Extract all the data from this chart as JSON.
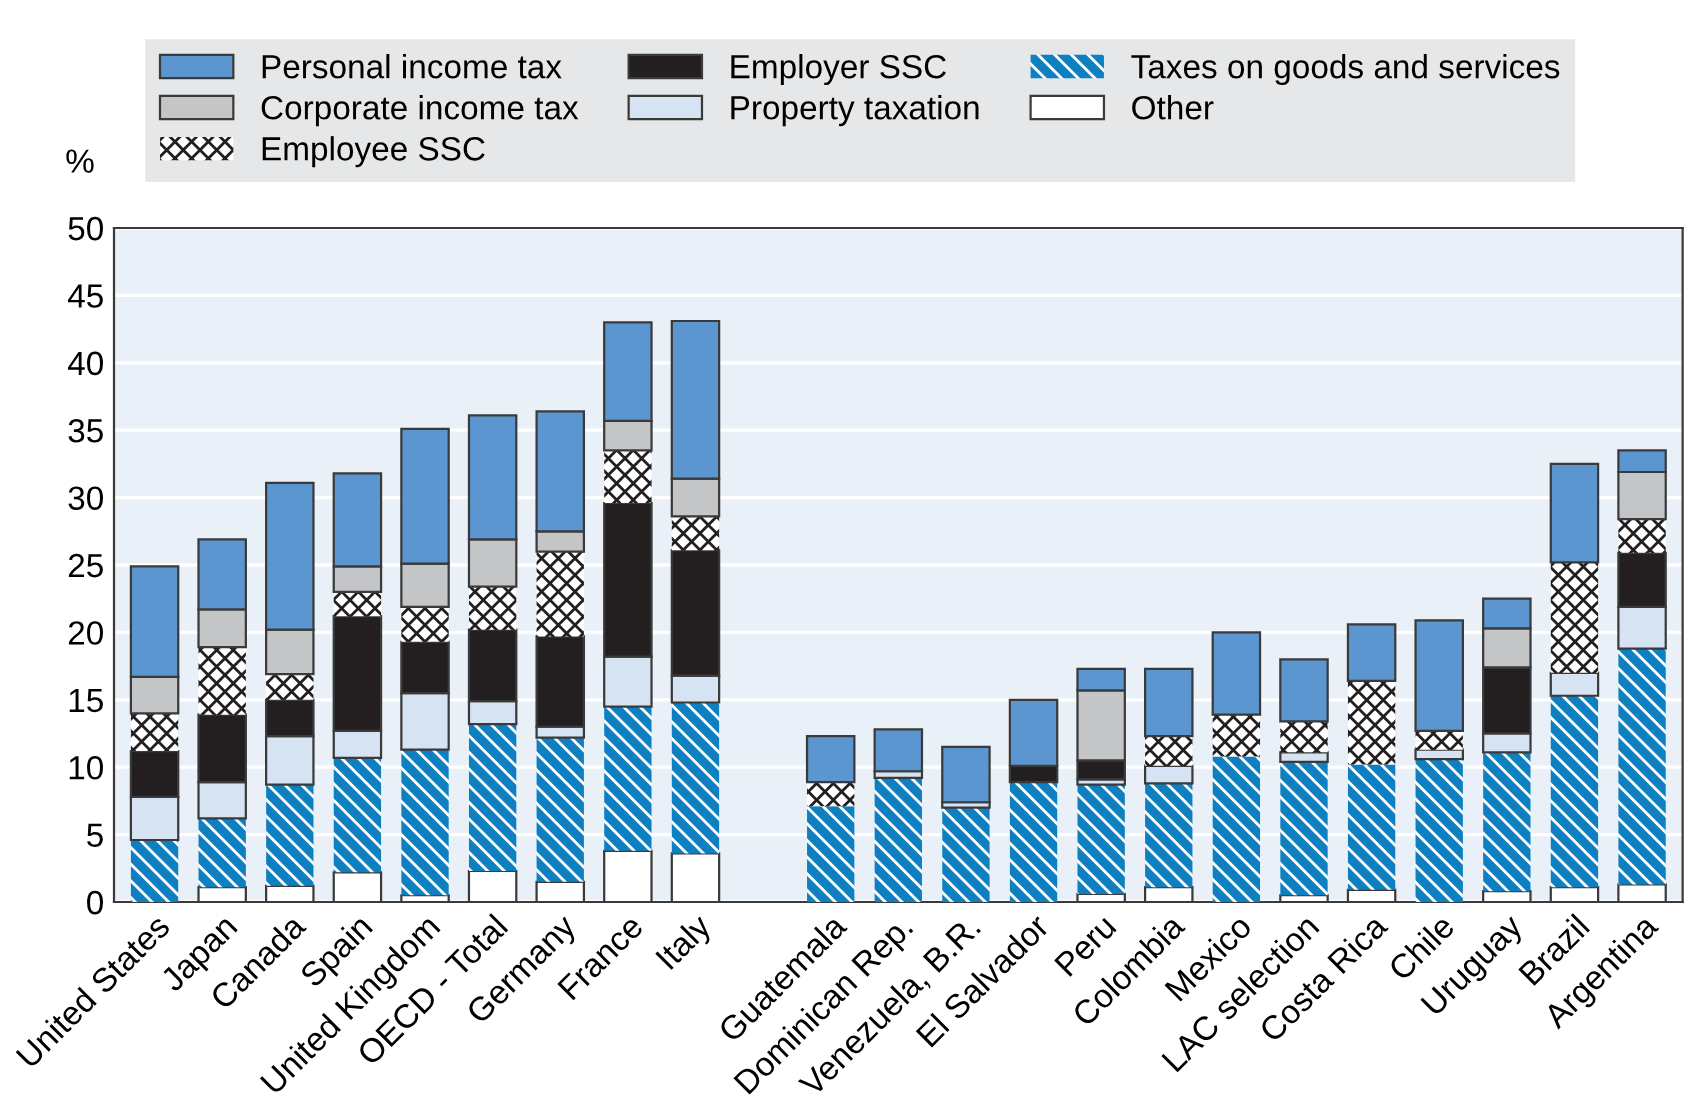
{
  "chart_data": {
    "type": "bar",
    "stacked": true,
    "ylabel": "%",
    "categories": [
      "United States",
      "Japan",
      "Canada",
      "Spain",
      "United Kingdom",
      "OECD - Total",
      "Germany",
      "France",
      "Italy",
      null,
      "Guatemala",
      "Dominican Rep.",
      "Venezuela, B.R.",
      "El Salvador",
      "Peru",
      "Colombia",
      "Mexico",
      "LAC selection",
      "Costa Rica",
      "Chile",
      "Uruguay",
      "Brazil",
      "Argentina"
    ],
    "series": [
      {
        "name": "Other",
        "color": "#ffffff",
        "values": [
          null,
          1.1,
          1.2,
          2.2,
          0.5,
          2.3,
          1.5,
          3.8,
          3.6,
          null,
          null,
          0,
          0,
          0,
          0.6,
          1.1,
          null,
          0.5,
          0.9,
          0,
          0.8,
          1.1,
          1.3
        ]
      },
      {
        "name": "Taxes on goods and services",
        "color": "#0e7fc0",
        "values": [
          4.6,
          5.1,
          7.5,
          8.5,
          10.8,
          10.9,
          10.7,
          10.7,
          11.2,
          null,
          7.1,
          9.2,
          7.0,
          8.9,
          8.1,
          7.7,
          10.8,
          9.9,
          9.3,
          10.6,
          10.3,
          14.2,
          17.5
        ]
      },
      {
        "name": "Property taxation",
        "color": "#d6e3f3",
        "values": [
          3.2,
          2.7,
          3.6,
          2.0,
          4.2,
          1.7,
          0.8,
          3.7,
          2.0,
          null,
          0,
          0.5,
          0.4,
          0,
          0.4,
          1.3,
          0,
          0.7,
          0,
          0.7,
          1.4,
          1.7,
          3.1
        ]
      },
      {
        "name": "Employer SSC",
        "color": "#231f20",
        "values": [
          3.4,
          5.0,
          2.7,
          8.5,
          3.8,
          5.3,
          6.7,
          11.4,
          9.3,
          null,
          0,
          0,
          0,
          1.2,
          1.4,
          0,
          0,
          0,
          0,
          0,
          4.9,
          0,
          4.0
        ]
      },
      {
        "name": "Employee SSC",
        "color": "#ffffff",
        "values": [
          2.8,
          5.0,
          1.9,
          1.8,
          2.6,
          3.2,
          6.3,
          3.9,
          2.5,
          null,
          1.8,
          0,
          0,
          0,
          null,
          2.2,
          3.1,
          2.3,
          6.2,
          1.4,
          0,
          8.2,
          2.5
        ]
      },
      {
        "name": "Corporate income tax",
        "color": "#c4c5c7",
        "values": [
          2.7,
          2.8,
          3.3,
          1.9,
          3.2,
          3.5,
          1.5,
          2.2,
          2.8,
          null,
          0,
          0,
          0,
          0,
          5.2,
          0,
          0,
          0,
          0,
          0,
          2.9,
          0,
          3.5
        ]
      },
      {
        "name": "Personal income tax",
        "color": "#5b96d0",
        "values": [
          8.2,
          5.2,
          10.9,
          6.9,
          10.0,
          9.2,
          8.9,
          7.3,
          11.7,
          null,
          3.4,
          3.1,
          4.1,
          4.9,
          1.6,
          5.0,
          6.1,
          4.6,
          4.2,
          8.2,
          2.2,
          7.3,
          1.6
        ]
      }
    ],
    "ylim": [
      0,
      50
    ],
    "yticks": [
      0,
      5,
      10,
      15,
      20,
      25,
      30,
      35,
      40,
      45,
      50
    ],
    "grid": "y",
    "legend": "top"
  }
}
